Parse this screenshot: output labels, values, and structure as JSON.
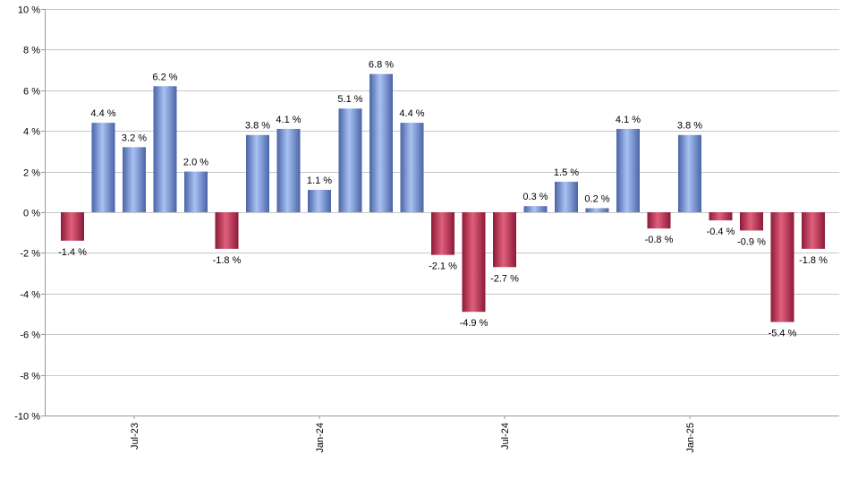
{
  "chart_data": {
    "type": "bar",
    "title": "",
    "xlabel": "",
    "ylabel": "",
    "ylim": [
      -10,
      10
    ],
    "ytick_step": 2,
    "ytick_suffix": " %",
    "grid": "horizontal",
    "values": [
      -1.4,
      4.4,
      3.2,
      6.2,
      2.0,
      -1.8,
      3.8,
      4.1,
      1.1,
      5.1,
      6.8,
      4.4,
      -2.1,
      -4.9,
      -2.7,
      0.3,
      1.5,
      0.2,
      4.1,
      -0.8,
      3.8,
      -0.4,
      -0.9,
      -5.4,
      -1.8
    ],
    "value_labels": [
      "-1.4 %",
      "4.4 %",
      "3.2 %",
      "6.2 %",
      "2.0 %",
      "-1.8 %",
      "3.8 %",
      "4.1 %",
      "1.1 %",
      "5.1 %",
      "6.8 %",
      "4.4 %",
      "-2.1 %",
      "-4.9 %",
      "-2.7 %",
      "0.3 %",
      "1.5 %",
      "0.2 %",
      "4.1 %",
      "-0.8 %",
      "3.8 %",
      "-0.4 %",
      "-0.9 %",
      "-5.4 %",
      "-1.8 %"
    ],
    "x_tick_labels": [
      {
        "label": "Jul-23",
        "index": 2
      },
      {
        "label": "Jan-24",
        "index": 8
      },
      {
        "label": "Jul-24",
        "index": 14
      },
      {
        "label": "Jan-25",
        "index": 20
      }
    ],
    "colors": {
      "positive_dark": "#4a64a8",
      "positive_light": "#a9c2f2",
      "negative_dark": "#8c1a38",
      "negative_light": "#e0607c",
      "grid": "#c8c8c8",
      "axis": "#999999"
    }
  }
}
